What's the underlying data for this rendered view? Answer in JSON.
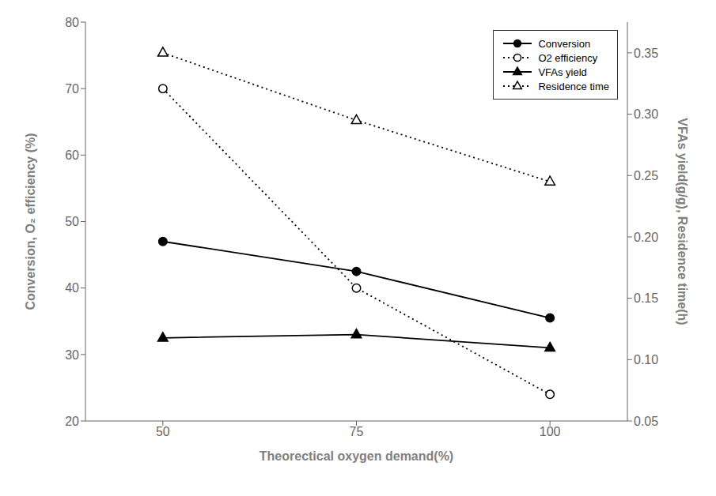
{
  "chart_data": {
    "type": "line",
    "x": [
      50,
      75,
      100
    ],
    "xlim": [
      40,
      110
    ],
    "xticks": [
      50,
      75,
      100
    ],
    "ylim": [
      20,
      80
    ],
    "yticks": [
      20,
      30,
      40,
      50,
      60,
      70,
      80
    ],
    "y2lim": [
      0.05,
      0.375
    ],
    "y2ticks": [
      0.05,
      {
        "value": 0.1,
        "label": "0.10"
      },
      0.15,
      {
        "value": 0.2,
        "label": "0.20"
      },
      0.25,
      {
        "value": 0.3,
        "label": "0.30"
      },
      0.35
    ],
    "xlabel": "Theorectical oxygen demand(%)",
    "ylabel": "Conversion, O₂ efficiency (%)",
    "y2label": "VFAs yield(g/g), Residence time(h)",
    "grid": false,
    "legend": "upper right",
    "series": [
      {
        "name": "Conversion",
        "color": "black",
        "marker": "circle",
        "line_style": "solid",
        "axis": "y",
        "values": [
          47,
          42.5,
          35.5
        ]
      },
      {
        "name": "O2 efficiency",
        "color": "black",
        "marker": "open_circle",
        "line_style": "dotted",
        "axis": "y",
        "values": [
          70,
          40,
          24
        ]
      },
      {
        "name": "VFAs yield",
        "color": "black",
        "marker": "triangle",
        "line_style": "solid",
        "axis": "y",
        "values": [
          32.5,
          33,
          31
        ]
      },
      {
        "name": "Residence time",
        "color": "black",
        "marker": "open_triangle",
        "line_style": "dotted",
        "axis": "y2",
        "values": [
          0.35,
          0.295,
          0.245
        ]
      }
    ]
  }
}
